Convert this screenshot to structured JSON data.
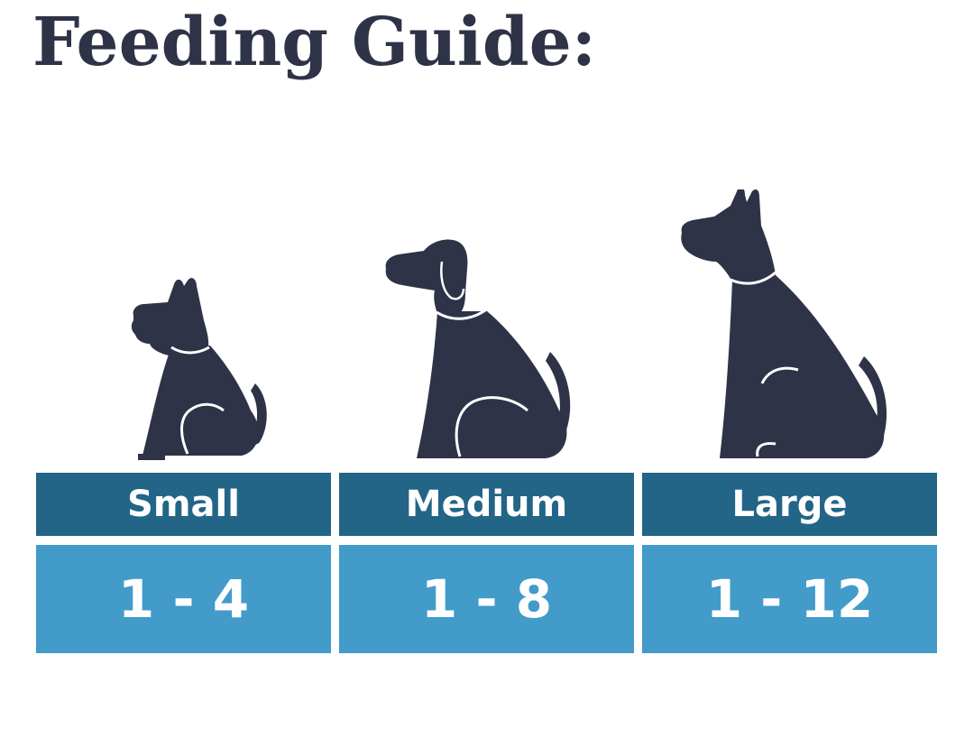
{
  "title": "Feeding Guide:",
  "colors": {
    "title": "#2e3347",
    "dog": "#2e3347",
    "header_background": "#236587",
    "value_background": "#429bc9",
    "cell_text": "#ffffff"
  },
  "dogs": [
    {
      "size": "small",
      "icon": "small-dog-icon"
    },
    {
      "size": "medium",
      "icon": "medium-dog-icon"
    },
    {
      "size": "large",
      "icon": "large-dog-icon"
    }
  ],
  "table": {
    "headers": [
      "Small",
      "Medium",
      "Large"
    ],
    "values": [
      "1 - 4",
      "1 - 8",
      "1 - 12"
    ]
  }
}
